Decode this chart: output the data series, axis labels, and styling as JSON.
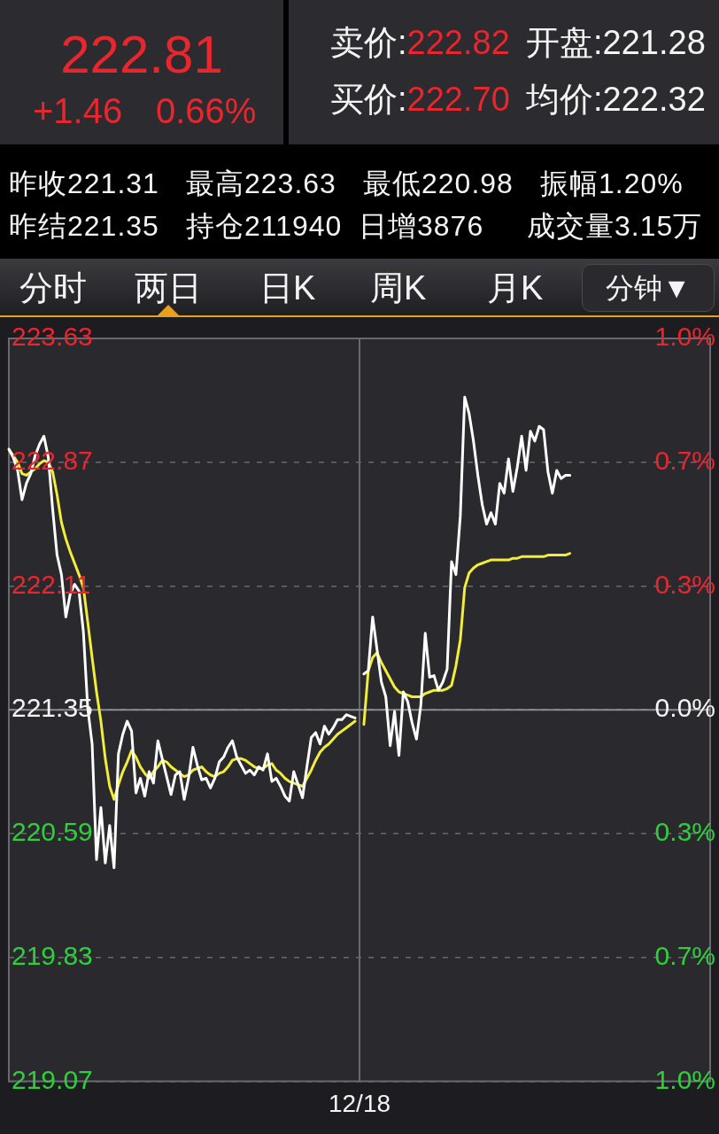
{
  "chart_data": {
    "type": "line",
    "annotations": [
      "222.81",
      "+1.46",
      "0.66%",
      "卖价:",
      "222.82",
      "开盘:221.28",
      "买价:",
      "222.70",
      "均价:222.32",
      "昨收221.31",
      "最高223.63",
      "最低220.98",
      "振幅1.20%",
      "昨结221.35",
      "持仓211940",
      "日增3876",
      "成交量3.15万",
      "分时",
      "两日",
      "日K",
      "周K",
      "月K",
      "分钟▼"
    ],
    "categories": [
      null,
      null,
      null,
      null,
      null,
      null,
      null,
      null,
      null,
      null,
      null,
      null,
      null,
      null,
      null,
      null,
      null,
      null,
      null,
      null,
      null,
      null,
      null,
      null,
      null,
      null,
      null,
      null,
      null,
      null,
      null,
      null,
      null,
      null,
      null,
      null,
      null,
      null,
      null,
      null,
      null,
      null,
      null,
      null,
      null,
      null,
      null,
      null,
      null,
      null,
      null,
      null,
      null,
      null,
      null,
      null,
      null,
      null,
      null,
      null,
      null,
      null,
      null,
      null,
      null,
      null,
      null,
      null,
      null,
      null,
      null,
      null,
      null,
      null,
      null,
      null,
      null,
      null,
      null,
      null,
      "12/18",
      null,
      null,
      null,
      null,
      null,
      null,
      null,
      null,
      null,
      null,
      null,
      null,
      null,
      null,
      null,
      null,
      null,
      null,
      null,
      null,
      null,
      null,
      null,
      null,
      null,
      null,
      null,
      null,
      null,
      null,
      null,
      null,
      null,
      null,
      null,
      null,
      null,
      null,
      null,
      null,
      null,
      null,
      null,
      null,
      null,
      null,
      null,
      null,
      null,
      null,
      null,
      null,
      null,
      null,
      null,
      null,
      null,
      null,
      null,
      null,
      null,
      null,
      null,
      null,
      null,
      null,
      null,
      null,
      null,
      null,
      null,
      null,
      null,
      null,
      null,
      null,
      null,
      null,
      null,
      null
    ],
    "series": [
      {
        "color": "#ffffff",
        "values": [
          222.95,
          222.9,
          222.82,
          222.64,
          222.74,
          222.8,
          222.91,
          222.98,
          223.03,
          222.9,
          222.58,
          222.3,
          222.18,
          221.92,
          222.06,
          222.12,
          222.08,
          221.83,
          221.36,
          221.14,
          220.43,
          220.75,
          220.41,
          220.64,
          220.38,
          221.08,
          221.2,
          221.28,
          221.22,
          220.84,
          220.93,
          220.82,
          220.97,
          220.9,
          221.16,
          221.05,
          220.94,
          220.83,
          220.95,
          220.97,
          220.8,
          220.93,
          221.12,
          221.01,
          220.92,
          220.93,
          220.87,
          220.93,
          221.03,
          221.06,
          221.12,
          221.16,
          221.06,
          221.01,
          220.96,
          220.98,
          220.95,
          221.0,
          220.98,
          221.08,
          220.91,
          220.93,
          220.88,
          220.82,
          220.79,
          220.97,
          220.89,
          220.81,
          221.0,
          221.18,
          221.21,
          221.14,
          221.25,
          221.2,
          221.24,
          221.29,
          221.29,
          221.32,
          221.31,
          221.3,
          null,
          221.57,
          221.59,
          221.92,
          221.72,
          221.52,
          221.43,
          221.13,
          221.34,
          221.07,
          221.46,
          221.4,
          221.27,
          221.17,
          221.38,
          221.82,
          221.55,
          221.56,
          221.47,
          221.52,
          221.6,
          222.26,
          222.18,
          222.54,
          223.27,
          223.17,
          223.0,
          222.79,
          222.61,
          222.49,
          222.56,
          222.49,
          222.74,
          222.68,
          222.89,
          222.69,
          222.84,
          223.03,
          222.82,
          223.06,
          223.0,
          223.09,
          223.07,
          222.81,
          222.68,
          222.82,
          222.77,
          222.79,
          222.79,
          null,
          null,
          null,
          null,
          null,
          null,
          null,
          null,
          null,
          null,
          null,
          null,
          null,
          null,
          null,
          null,
          null,
          null,
          null,
          null,
          null,
          null,
          null,
          null,
          null,
          null,
          null,
          null,
          null,
          null,
          null,
          null
        ]
      },
      {
        "color": "#f2ec3a",
        "values": [
          222.95,
          222.91,
          222.87,
          222.8,
          222.79,
          222.81,
          222.83,
          222.86,
          222.88,
          222.87,
          222.81,
          222.67,
          222.5,
          222.4,
          222.32,
          222.25,
          222.18,
          222.1,
          221.89,
          221.67,
          221.46,
          221.28,
          221.05,
          220.88,
          220.8,
          220.89,
          220.97,
          221.03,
          221.1,
          221.06,
          221.0,
          220.96,
          220.93,
          220.97,
          221.0,
          221.04,
          221.03,
          221.0,
          220.98,
          220.96,
          220.94,
          220.95,
          220.98,
          220.99,
          221.0,
          220.97,
          220.95,
          220.94,
          220.96,
          220.97,
          221.0,
          221.04,
          221.05,
          221.05,
          221.04,
          221.02,
          221.0,
          220.99,
          220.99,
          221.01,
          221.02,
          220.98,
          220.96,
          220.93,
          220.91,
          220.9,
          220.89,
          220.88,
          220.93,
          220.98,
          221.04,
          221.09,
          221.12,
          221.14,
          221.17,
          221.2,
          221.22,
          221.24,
          221.26,
          221.28,
          null,
          221.26,
          221.59,
          221.67,
          221.7,
          221.64,
          221.59,
          221.54,
          221.49,
          221.46,
          221.45,
          221.44,
          221.43,
          221.43,
          221.43,
          221.45,
          221.46,
          221.47,
          221.47,
          221.47,
          221.48,
          221.5,
          221.62,
          221.78,
          222.1,
          222.19,
          222.22,
          222.24,
          222.25,
          222.26,
          222.27,
          222.27,
          222.27,
          222.27,
          222.27,
          222.28,
          222.28,
          222.29,
          222.29,
          222.29,
          222.29,
          222.29,
          222.29,
          222.3,
          222.3,
          222.3,
          222.3,
          222.3,
          222.31,
          null,
          null,
          null,
          null,
          null,
          null,
          null,
          null,
          null,
          null,
          null,
          null,
          null,
          null,
          null,
          null,
          null,
          null,
          null,
          null,
          null,
          null,
          null,
          null,
          null,
          null,
          null,
          null,
          null,
          null,
          null,
          null
        ]
      }
    ],
    "ylim": [
      219.07,
      223.63
    ],
    "yticks": [
      223.63,
      222.87,
      222.11,
      221.35,
      220.59,
      219.83,
      219.07
    ],
    "y2lim": [
      -1.03,
      1.03
    ],
    "y2ticks": [
      {
        "value": 1.03,
        "label": "1.0%"
      },
      {
        "value": 0.687,
        "label": "0.7%"
      },
      {
        "value": 0.343,
        "label": "0.3%"
      },
      {
        "value": 0,
        "label": "0.0%"
      }
    ],
    "y3lim": [
      1.03,
      -1.03
    ],
    "y3ticks": [
      {
        "value": 0.343,
        "label": "0.3%"
      },
      {
        "value": 0.687,
        "label": "0.7%"
      },
      {
        "value": 1.03,
        "label": "1.0%"
      }
    ],
    "ref_lines": [
      {
        "axis": "y",
        "value": 221.35,
        "color": "#8c8b90"
      }
    ],
    "grid": true
  }
}
